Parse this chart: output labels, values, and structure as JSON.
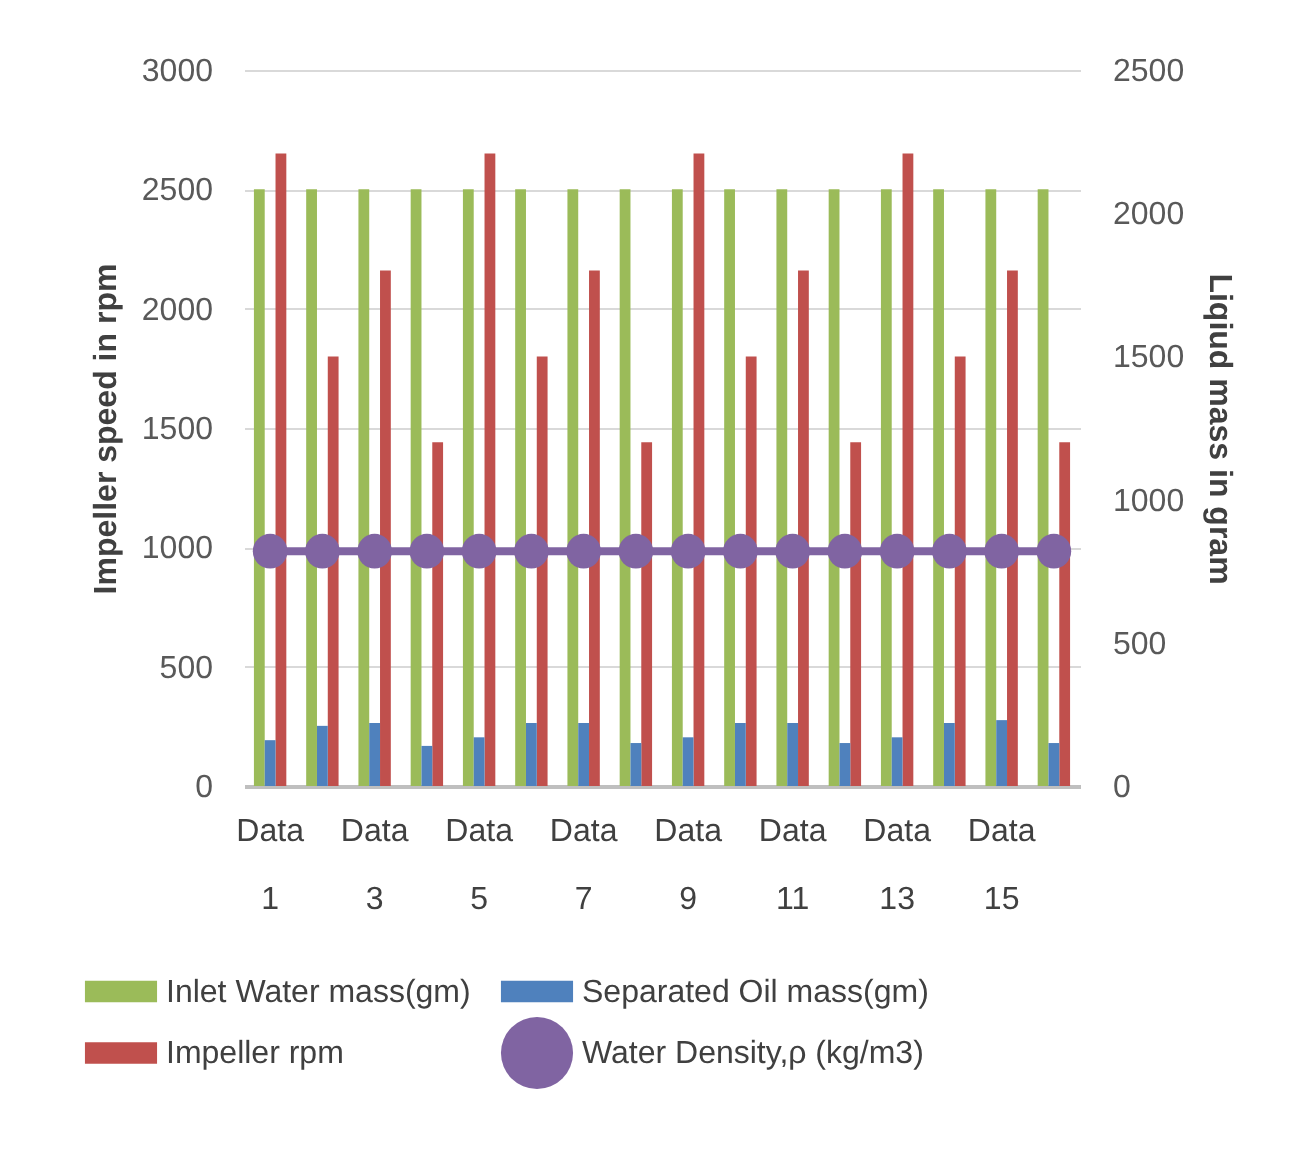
{
  "chart_data": {
    "type": "bar",
    "xlabel": null,
    "ylabel": "Impeller speed in rpm",
    "y2label": "Liqiud mass in gram",
    "categories": [
      "Data 1",
      null,
      "Data 3",
      null,
      "Data 5",
      null,
      "Data 7",
      null,
      "Data 9",
      null,
      "Data 11",
      null,
      "Data 13",
      null,
      "Data 15",
      null
    ],
    "series": [
      {
        "name": "Inlet Water mass(gm)",
        "color": "#9bbb59",
        "values": [
          2500,
          2500,
          2500,
          2500,
          2500,
          2500,
          2500,
          2500,
          2500,
          2500,
          2500,
          2500,
          2500,
          2500,
          2500,
          2500
        ]
      },
      {
        "name": "Separated Oil mass(gm)",
        "color": "#4f81bd",
        "axis": "y2",
        "values": [
          160,
          210,
          220,
          140,
          170,
          220,
          220,
          150,
          170,
          220,
          220,
          150,
          170,
          220,
          230,
          150
        ]
      },
      {
        "name": "Impeller rpm",
        "color": "#c0504d",
        "values": [
          2650,
          1800,
          2160,
          1440,
          2650,
          1800,
          2160,
          1440,
          2650,
          1800,
          2160,
          1440,
          2650,
          1800,
          2160,
          1440
        ]
      },
      {
        "name": "Water Density,ρ (kg/m3)",
        "type": "line",
        "color": "#8064a2",
        "axis": "y2",
        "values": [
          820,
          820,
          820,
          820,
          820,
          820,
          820,
          820,
          820,
          820,
          820,
          820,
          820,
          820,
          820,
          820
        ]
      }
    ],
    "ylim": [
      0,
      3000
    ],
    "yticks": [
      0,
      500,
      1000,
      1500,
      2000,
      2500,
      3000
    ],
    "y2lim": [
      0,
      2500
    ],
    "y2ticks": [
      0,
      500,
      1000,
      1500,
      2000,
      2500
    ],
    "grid": "y",
    "legend": "bottom",
    "marker": "circle",
    "line_style": "solid"
  }
}
